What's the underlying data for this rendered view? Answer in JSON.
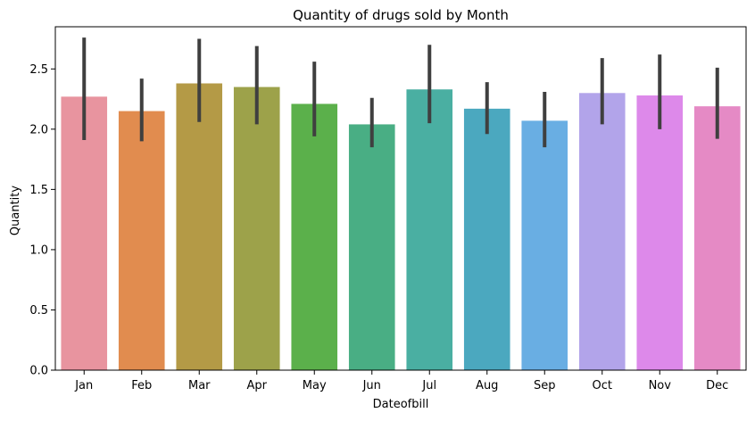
{
  "chart_data": {
    "type": "bar",
    "title": "Quantity of drugs sold by Month",
    "xlabel": "Dateofbill",
    "ylabel": "Quantity",
    "ylim": [
      0,
      2.85
    ],
    "yticks": [
      "0.0",
      "0.5",
      "1.0",
      "1.5",
      "2.0",
      "2.5"
    ],
    "categories": [
      "Jan",
      "Feb",
      "Mar",
      "Apr",
      "May",
      "Jun",
      "Jul",
      "Aug",
      "Sep",
      "Oct",
      "Nov",
      "Dec"
    ],
    "values": [
      2.27,
      2.15,
      2.38,
      2.35,
      2.21,
      2.04,
      2.33,
      2.17,
      2.07,
      2.3,
      2.28,
      2.19
    ],
    "error_low": [
      1.91,
      1.9,
      2.06,
      2.04,
      1.94,
      1.85,
      2.05,
      1.96,
      1.85,
      2.04,
      2.0,
      1.92
    ],
    "error_high": [
      2.76,
      2.42,
      2.75,
      2.69,
      2.56,
      2.26,
      2.7,
      2.39,
      2.31,
      2.59,
      2.62,
      2.51
    ],
    "colors": [
      "#e8949f",
      "#e18c4f",
      "#b49a46",
      "#9da24a",
      "#5bb04b",
      "#49ae84",
      "#4aafa2",
      "#4ba8bf",
      "#69aee3",
      "#b2a4ea",
      "#dd89ea",
      "#e58ac5"
    ],
    "error_color": "#3f3f3f",
    "grid": false,
    "legend": "none"
  }
}
